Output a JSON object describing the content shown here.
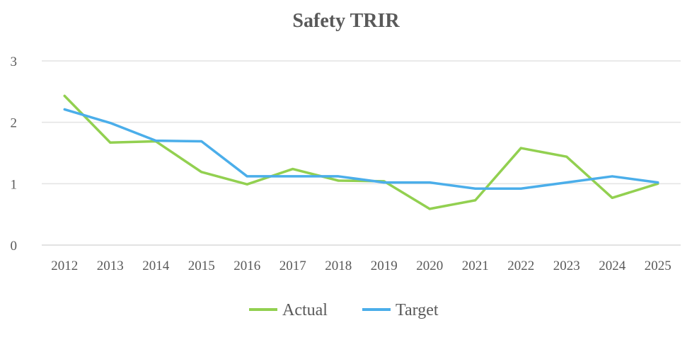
{
  "chart_data": {
    "type": "line",
    "title": "Safety TRIR",
    "xlabel": "",
    "ylabel": "",
    "categories": [
      "2012",
      "2013",
      "2014",
      "2015",
      "2016",
      "2017",
      "2018",
      "2019",
      "2020",
      "2021",
      "2022",
      "2023",
      "2024",
      "2025"
    ],
    "yticks": [
      "0",
      "1",
      "2",
      "3"
    ],
    "ylim": [
      0,
      3
    ],
    "grid": true,
    "legend_position": "bottom",
    "series": [
      {
        "name": "Actual",
        "color": "#92d050",
        "values": [
          2.43,
          1.67,
          1.69,
          1.19,
          0.99,
          1.24,
          1.05,
          1.04,
          0.59,
          0.73,
          1.58,
          1.44,
          0.77,
          1.0
        ]
      },
      {
        "name": "Target",
        "color": "#4baeea",
        "values": [
          2.21,
          1.99,
          1.7,
          1.69,
          1.12,
          1.12,
          1.12,
          1.02,
          1.02,
          0.92,
          0.92,
          1.02,
          1.12,
          1.02
        ]
      }
    ]
  }
}
